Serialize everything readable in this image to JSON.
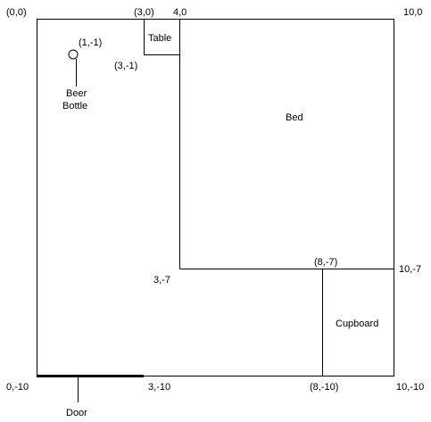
{
  "room": {
    "corner_top_left": "(0,0)",
    "corner_top_right": "10,0",
    "corner_bottom_left": "0,-10",
    "corner_bottom_right": "10,-10"
  },
  "table": {
    "label": "Table",
    "top_left_coord": "(3,0)",
    "top_right_coord": "4,0",
    "bottom_left_coord": "(3,-1)"
  },
  "bed": {
    "label": "Bed",
    "bottom_left_coord": "3,-7",
    "bottom_right_coord": "10,-7"
  },
  "cupboard": {
    "label": "Cupboard",
    "top_left_coord": "(8,-7)",
    "bottom_left_coord": "(8,-10)"
  },
  "beer_bottle": {
    "label_line1": "Beer",
    "label_line2": "Bottle",
    "coord": "(1,-1)"
  },
  "door": {
    "label": "Door",
    "right_coord": "3,-10"
  }
}
